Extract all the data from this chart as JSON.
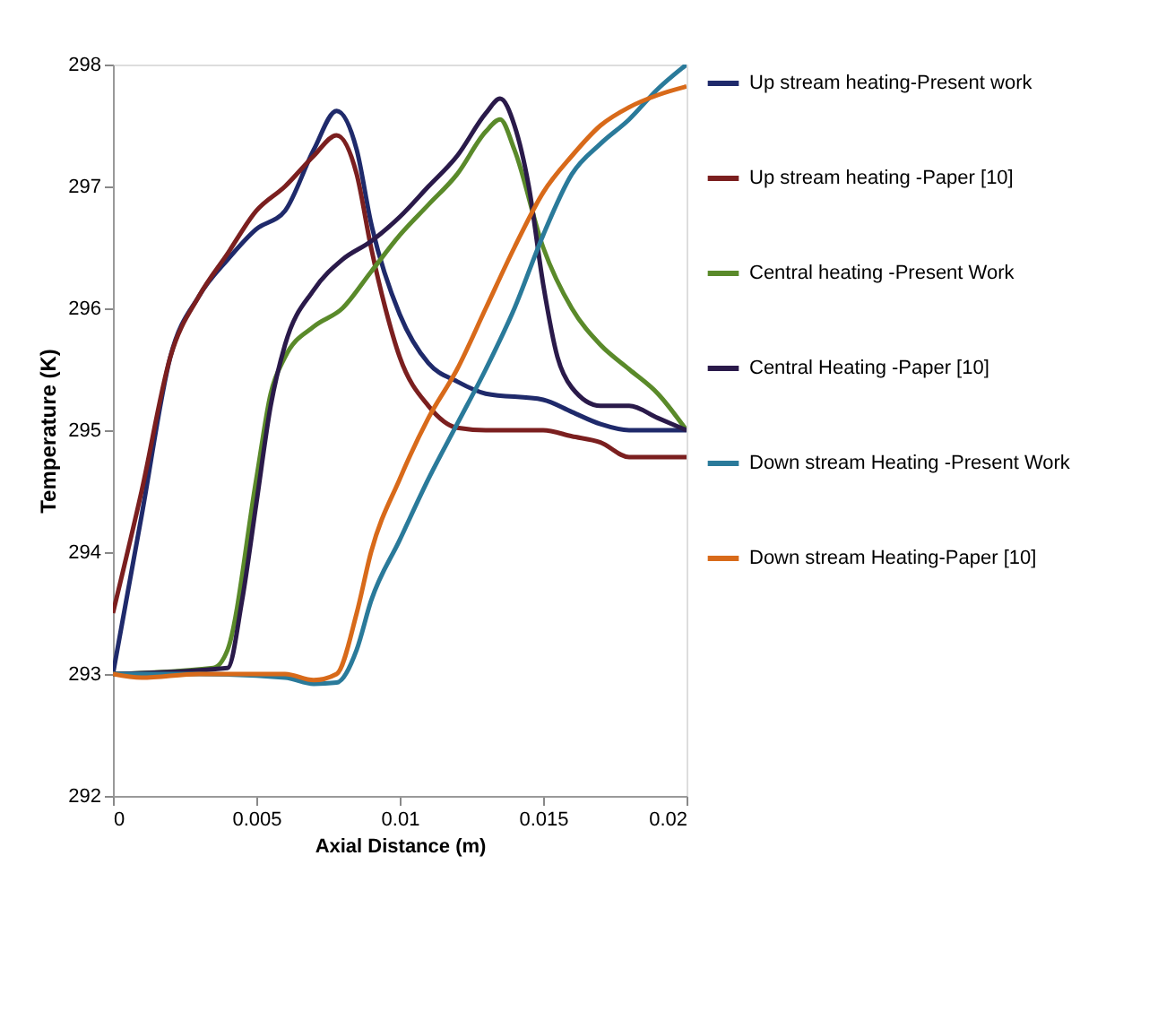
{
  "chart_data": {
    "type": "line",
    "xlabel": "Axial Distance (m)",
    "ylabel": "Temperature (K)",
    "xlim": [
      0,
      0.02
    ],
    "xticks": [
      0,
      0.005,
      0.01,
      0.015,
      0.02
    ],
    "ylim": [
      292,
      298
    ],
    "yticks": [
      292,
      293,
      294,
      295,
      296,
      297,
      298
    ],
    "grid": false,
    "legend": "right",
    "marker": "none",
    "line_style": "solid",
    "series": [
      {
        "name": "Up stream heating-Present work",
        "color": "#1f2a6b",
        "x": [
          0,
          0.001,
          0.002,
          0.003,
          0.004,
          0.005,
          0.006,
          0.007,
          0.0078,
          0.0085,
          0.009,
          0.01,
          0.011,
          0.012,
          0.013,
          0.015,
          0.016,
          0.017,
          0.018,
          0.02
        ],
        "values": [
          293,
          294.3,
          295.6,
          296.1,
          296.4,
          296.65,
          296.8,
          297.3,
          297.62,
          297.3,
          296.7,
          295.95,
          295.55,
          295.4,
          295.3,
          295.25,
          295.15,
          295.05,
          295.0,
          295.0
        ]
      },
      {
        "name": "Up stream heating -Paper [10]",
        "color": "#7b1f1f",
        "x": [
          0,
          0.001,
          0.002,
          0.003,
          0.004,
          0.005,
          0.006,
          0.007,
          0.0078,
          0.0085,
          0.009,
          0.0095,
          0.01,
          0.011,
          0.012,
          0.013,
          0.015,
          0.016,
          0.017,
          0.018,
          0.02
        ],
        "values": [
          293.5,
          294.5,
          295.6,
          296.1,
          296.45,
          296.8,
          297.0,
          297.25,
          297.42,
          297.1,
          296.5,
          296.0,
          295.6,
          295.2,
          295.02,
          295.0,
          295.0,
          294.95,
          294.9,
          294.78,
          294.78
        ]
      },
      {
        "name": "Central heating -Present Work",
        "color": "#5a8a2a",
        "x": [
          0,
          0.0035,
          0.004,
          0.005,
          0.0055,
          0.006,
          0.007,
          0.008,
          0.009,
          0.01,
          0.011,
          0.012,
          0.013,
          0.0135,
          0.014,
          0.015,
          0.016,
          0.017,
          0.018,
          0.019,
          0.02
        ],
        "values": [
          293,
          293.05,
          293.2,
          294.6,
          295.3,
          295.6,
          295.85,
          296.0,
          296.3,
          296.6,
          296.85,
          297.1,
          297.45,
          297.55,
          297.3,
          296.5,
          296.0,
          295.7,
          295.5,
          295.3,
          295.0
        ]
      },
      {
        "name": "Central Heating -Paper [10]",
        "color": "#2a1a4a",
        "x": [
          0,
          0.004,
          0.0045,
          0.005,
          0.0055,
          0.006,
          0.007,
          0.008,
          0.009,
          0.01,
          0.011,
          0.012,
          0.013,
          0.0135,
          0.014,
          0.0145,
          0.015,
          0.0155,
          0.016,
          0.017,
          0.018,
          0.019,
          0.02
        ],
        "values": [
          293,
          293.05,
          293.6,
          294.4,
          295.2,
          295.7,
          296.15,
          296.4,
          296.55,
          296.75,
          297.0,
          297.25,
          297.6,
          297.72,
          297.5,
          297.0,
          296.2,
          295.6,
          295.35,
          295.2,
          295.2,
          295.1,
          295.0
        ]
      },
      {
        "name": "Down stream Heating -Present Work",
        "color": "#2a7a9a",
        "x": [
          0,
          0.003,
          0.006,
          0.007,
          0.0078,
          0.0085,
          0.009,
          0.01,
          0.011,
          0.012,
          0.013,
          0.014,
          0.015,
          0.016,
          0.017,
          0.018,
          0.019,
          0.02
        ],
        "values": [
          293,
          293.0,
          292.97,
          292.92,
          292.93,
          293.2,
          293.6,
          294.1,
          294.6,
          295.05,
          295.5,
          296.0,
          296.6,
          297.1,
          297.35,
          297.55,
          297.8,
          298.0
        ]
      },
      {
        "name": "Down stream Heating-Paper [10]",
        "color": "#d86a1a",
        "x": [
          0,
          0.001,
          0.003,
          0.006,
          0.007,
          0.0078,
          0.0085,
          0.009,
          0.01,
          0.011,
          0.012,
          0.013,
          0.014,
          0.015,
          0.016,
          0.017,
          0.018,
          0.019,
          0.02
        ],
        "values": [
          293,
          292.97,
          293.0,
          293.0,
          292.95,
          293.0,
          293.5,
          294.0,
          294.6,
          295.1,
          295.5,
          296.0,
          296.5,
          296.95,
          297.25,
          297.5,
          297.65,
          297.75,
          297.82
        ]
      }
    ]
  }
}
